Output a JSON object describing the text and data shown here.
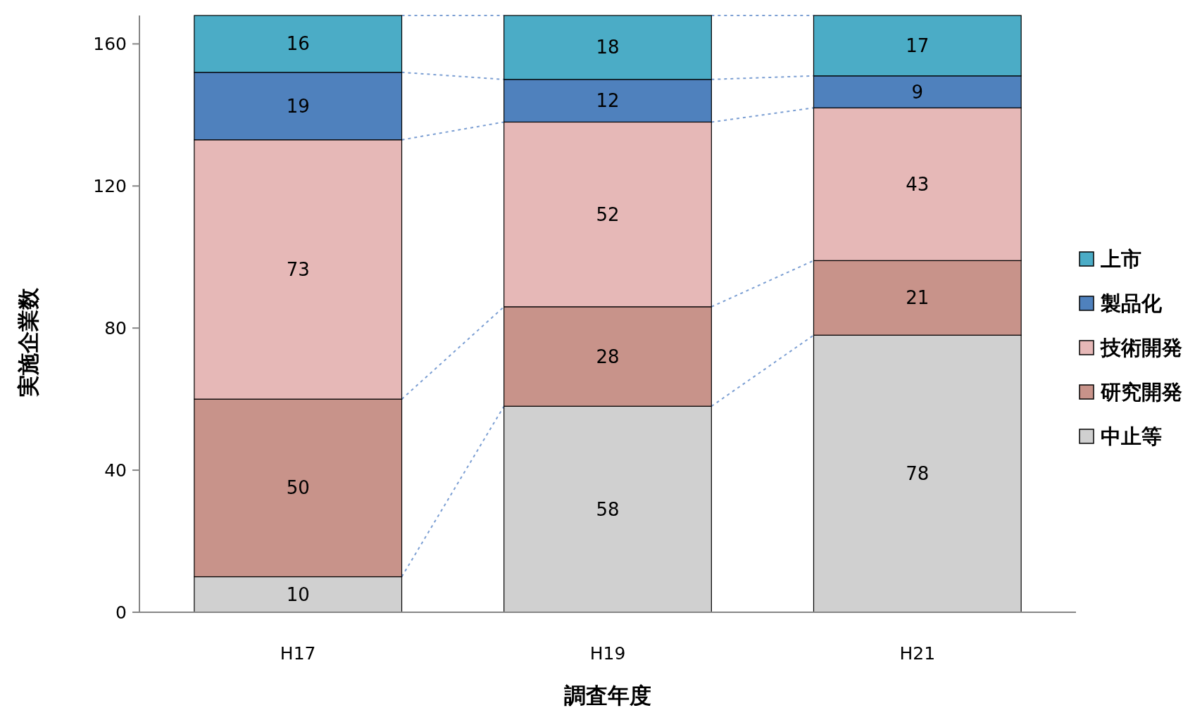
{
  "chart_data": {
    "type": "bar",
    "stacked": true,
    "xlabel": "調査年度",
    "ylabel": "実施企業数",
    "categories": [
      "H17",
      "H19",
      "H21"
    ],
    "series": [
      {
        "name": "中止等",
        "color": "#d0d0d0",
        "values": [
          10,
          58,
          78
        ]
      },
      {
        "name": "研究開発",
        "color": "#c8938a",
        "values": [
          50,
          28,
          21
        ]
      },
      {
        "name": "技術開発",
        "color": "#e6b8b7",
        "values": [
          73,
          52,
          43
        ]
      },
      {
        "name": "製品化",
        "color": "#4f81bd",
        "values": [
          19,
          12,
          9
        ]
      },
      {
        "name": "上市",
        "color": "#4bacc6",
        "values": [
          16,
          18,
          17
        ]
      }
    ],
    "ylim": [
      0,
      168
    ],
    "yticks": [
      0,
      40,
      80,
      120,
      160
    ],
    "data_labels": true,
    "legend": "right",
    "grid": false
  }
}
